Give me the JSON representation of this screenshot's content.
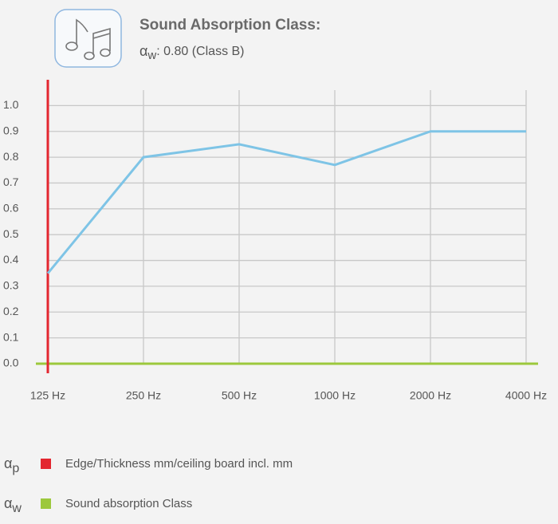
{
  "chart_data": {
    "type": "line",
    "title": "Sound Absorption Class:",
    "subtitle": {
      "symbol": "α",
      "subscript": "w",
      "text": ": 0.80 (Class B)"
    },
    "categories": [
      "125 Hz",
      "250 Hz",
      "500 Hz",
      "1000 Hz",
      "2000 Hz",
      "4000 Hz"
    ],
    "series": [
      {
        "color": "#7ec4e6",
        "values": [
          0.35,
          0.8,
          0.85,
          0.77,
          0.9,
          0.9
        ]
      }
    ],
    "ylim": [
      0,
      1.1
    ],
    "yticks": [
      {
        "value": 0,
        "label": "0.0"
      },
      0.1,
      0.2,
      0.3,
      0.4,
      0.5,
      0.6,
      0.7,
      0.8,
      0.9,
      {
        "value": 1,
        "label": "1.0"
      }
    ],
    "grid": true,
    "y_axis_color": "#e3262f",
    "x_axis_color": "#9cc83c",
    "legend": [
      {
        "symbol": "α",
        "subscript": "p",
        "color": "#e3262f",
        "label": "Edge/Thickness mm/ceiling board incl. mm"
      },
      {
        "symbol": "α",
        "subscript": "w",
        "color": "#9cc83c",
        "label": "Sound absorption Class"
      }
    ]
  }
}
